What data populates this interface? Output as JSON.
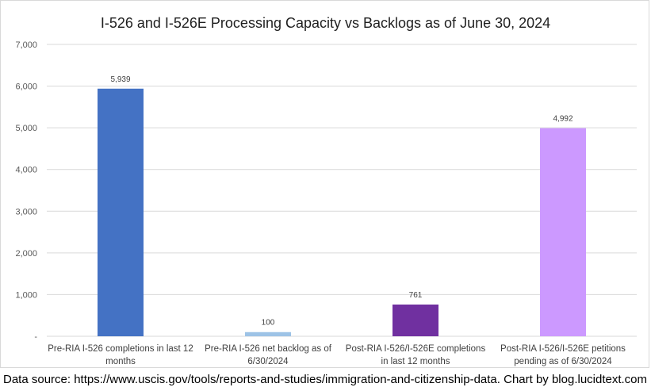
{
  "chart_data": {
    "type": "bar",
    "title": "I-526 and I-526E Processing Capacity vs Backlogs as of June 30, 2024",
    "categories": [
      [
        "Pre-RIA I-526 completions in last 12",
        "months"
      ],
      [
        "Pre-RIA I-526 net backlog as of",
        "6/30/2024"
      ],
      [
        "Post-RIA I-526/I-526E completions",
        "in last 12 months"
      ],
      [
        "Post-RIA I-526/I-526E petitions",
        "pending as of 6/30/2024"
      ]
    ],
    "values": [
      5939,
      100,
      761,
      4992
    ],
    "data_labels": [
      "5,939",
      "100",
      "761",
      "4,992"
    ],
    "colors": [
      "#4472c4",
      "#9dc3e6",
      "#7030a0",
      "#cc99ff"
    ],
    "ylim": [
      0,
      7000
    ],
    "yticks": [
      0,
      1000,
      2000,
      3000,
      4000,
      5000,
      6000,
      7000
    ],
    "ytick_labels": [
      "-",
      "1,000",
      "2,000",
      "3,000",
      "4,000",
      "5,000",
      "6,000",
      "7,000"
    ],
    "grid": true,
    "xlabel": "",
    "ylabel": ""
  },
  "footer": {
    "source": "Data source: https://www.uscis.gov/tools/reports-and-studies/immigration-and-citizenship-data. Chart by blog.lucidtext.com"
  }
}
